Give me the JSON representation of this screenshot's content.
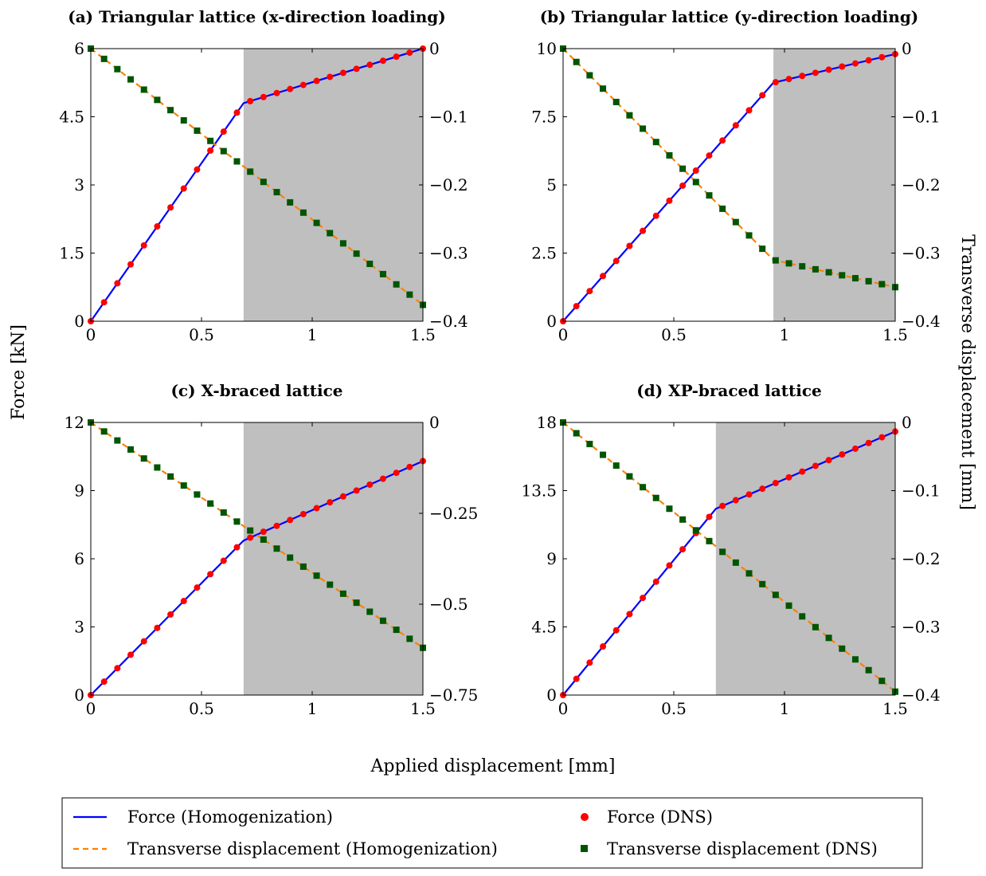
{
  "figure": {
    "shared_xlabel": "Applied displacement [mm]",
    "shared_ylabel_left": "Force [kN]",
    "shared_ylabel_right": "Transverse displacement [mm]"
  },
  "legend": {
    "placement": "bottom",
    "entries": [
      {
        "label": "Force (Homogenization)",
        "style": "solid-line",
        "color": "#0000ff"
      },
      {
        "label": "Force (DNS)",
        "style": "circle-marker",
        "color": "#ff0000"
      },
      {
        "label": "Transverse displacement (Homogenization)",
        "style": "dashed-line",
        "color": "#ff8000"
      },
      {
        "label": "Transverse displacement (DNS)",
        "style": "square-marker",
        "color": "#005500"
      }
    ]
  },
  "colors": {
    "force_line": "#0000ff",
    "force_dns": "#ff0000",
    "trans_line": "#ff8000",
    "trans_dns": "#005500",
    "shade": "#bfbfbf"
  },
  "chart_data": [
    {
      "type": "line",
      "title": "(a) Triangular lattice (x-direction loading)",
      "xlim": [
        0,
        1.5
      ],
      "x_ticks": [
        "0",
        "0.5",
        "1",
        "1.5"
      ],
      "ylim_left": [
        0,
        6
      ],
      "y_ticks_left": [
        "0",
        "1.5",
        "3",
        "4.5",
        "6"
      ],
      "ylim_right": [
        -0.4,
        0
      ],
      "y_ticks_right": [
        "0",
        "−0.1",
        "−0.2",
        "−0.3",
        "−0.4"
      ],
      "shaded_region": [
        0.69,
        1.5
      ],
      "series": [
        {
          "name": "Force (Homogenization)",
          "axis": "left",
          "kind": "line",
          "x": [
            0,
            0.69,
            1.5
          ],
          "y": [
            0,
            4.8,
            6.0
          ]
        },
        {
          "name": "Force (DNS)",
          "axis": "left",
          "kind": "markers",
          "x_start": 0,
          "x_step": 0.06,
          "count": 26,
          "knee_x": 0.69,
          "knee_y": 4.8,
          "end_y": 6.0
        },
        {
          "name": "Transverse displacement (Homogenization)",
          "axis": "right",
          "kind": "dashed",
          "x": [
            0,
            1.5
          ],
          "y": [
            0,
            -0.376
          ]
        },
        {
          "name": "Transverse displacement (DNS)",
          "axis": "right",
          "kind": "markers",
          "x_start": 0,
          "x_step": 0.06,
          "count": 26,
          "knee_x": 0.69,
          "knee_y": -0.173,
          "end_y": -0.376
        }
      ]
    },
    {
      "type": "line",
      "title": "(b) Triangular lattice (y-direction loading)",
      "xlim": [
        0,
        1.5
      ],
      "x_ticks": [
        "0",
        "0.5",
        "1",
        "1.5"
      ],
      "ylim_left": [
        0,
        10
      ],
      "y_ticks_left": [
        "0",
        "2.5",
        "5",
        "7.5",
        "10"
      ],
      "ylim_right": [
        -0.4,
        0
      ],
      "y_ticks_right": [
        "0",
        "−0.1",
        "−0.2",
        "−0.3",
        "−0.4"
      ],
      "shaded_region": [
        0.95,
        1.5
      ],
      "series": [
        {
          "name": "Force (Homogenization)",
          "axis": "left",
          "kind": "line",
          "x": [
            0,
            0.95,
            1.5
          ],
          "y": [
            0,
            8.75,
            9.8
          ]
        },
        {
          "name": "Force (DNS)",
          "axis": "left",
          "kind": "markers",
          "x_start": 0,
          "x_step": 0.06,
          "count": 26,
          "knee_x": 0.95,
          "knee_y": 8.75,
          "end_y": 9.8
        },
        {
          "name": "Transverse displacement (Homogenization)",
          "axis": "right",
          "kind": "dashed",
          "x": [
            0,
            0.95,
            1.5
          ],
          "y": [
            0,
            -0.31,
            -0.35
          ]
        },
        {
          "name": "Transverse displacement (DNS)",
          "axis": "right",
          "kind": "markers",
          "x_start": 0,
          "x_step": 0.06,
          "count": 26,
          "knee_x": 0.95,
          "knee_y": -0.31,
          "end_y": -0.35
        }
      ]
    },
    {
      "type": "line",
      "title": "(c) X-braced lattice",
      "xlim": [
        0,
        1.5
      ],
      "x_ticks": [
        "0",
        "0.5",
        "1",
        "1.5"
      ],
      "ylim_left": [
        0,
        12
      ],
      "y_ticks_left": [
        "0",
        "3",
        "6",
        "9",
        "12"
      ],
      "ylim_right": [
        -0.75,
        0
      ],
      "y_ticks_right": [
        "0",
        "−0.25",
        "−0.5",
        "−0.75"
      ],
      "shaded_region": [
        0.69,
        1.5
      ],
      "series": [
        {
          "name": "Force (Homogenization)",
          "axis": "left",
          "kind": "line",
          "x": [
            0,
            0.69,
            1.5
          ],
          "y": [
            0,
            6.8,
            10.3
          ]
        },
        {
          "name": "Force (DNS)",
          "axis": "left",
          "kind": "markers",
          "x_start": 0,
          "x_step": 0.06,
          "count": 26,
          "knee_x": 0.69,
          "knee_y": 6.8,
          "end_y": 10.3
        },
        {
          "name": "Transverse displacement (Homogenization)",
          "axis": "right",
          "kind": "dashed",
          "x": [
            0,
            1.5
          ],
          "y": [
            0,
            -0.62
          ]
        },
        {
          "name": "Transverse displacement (DNS)",
          "axis": "right",
          "kind": "markers",
          "x_start": 0,
          "x_step": 0.06,
          "count": 26,
          "knee_x": 0.69,
          "knee_y": -0.285,
          "end_y": -0.62
        }
      ]
    },
    {
      "type": "line",
      "title": "(d) XP-braced lattice",
      "xlim": [
        0,
        1.5
      ],
      "x_ticks": [
        "0",
        "0.5",
        "1",
        "1.5"
      ],
      "ylim_left": [
        0,
        18
      ],
      "y_ticks_left": [
        "0",
        "4.5",
        "9",
        "13.5",
        "18"
      ],
      "ylim_right": [
        -0.4,
        0
      ],
      "y_ticks_right": [
        "0",
        "−0.1",
        "−0.2",
        "−0.3",
        "−0.4"
      ],
      "shaded_region": [
        0.69,
        1.5
      ],
      "series": [
        {
          "name": "Force (Homogenization)",
          "axis": "left",
          "kind": "line",
          "x": [
            0,
            0.69,
            1.5
          ],
          "y": [
            0,
            12.3,
            17.4
          ]
        },
        {
          "name": "Force (DNS)",
          "axis": "left",
          "kind": "markers",
          "x_start": 0,
          "x_step": 0.06,
          "count": 26,
          "knee_x": 0.69,
          "knee_y": 12.3,
          "end_y": 17.4
        },
        {
          "name": "Transverse displacement (Homogenization)",
          "axis": "right",
          "kind": "dashed",
          "x": [
            0,
            1.5
          ],
          "y": [
            0,
            -0.395
          ]
        },
        {
          "name": "Transverse displacement (DNS)",
          "axis": "right",
          "kind": "markers",
          "x_start": 0,
          "x_step": 0.06,
          "count": 26,
          "knee_x": 0.69,
          "knee_y": -0.182,
          "end_y": -0.395
        }
      ]
    }
  ]
}
